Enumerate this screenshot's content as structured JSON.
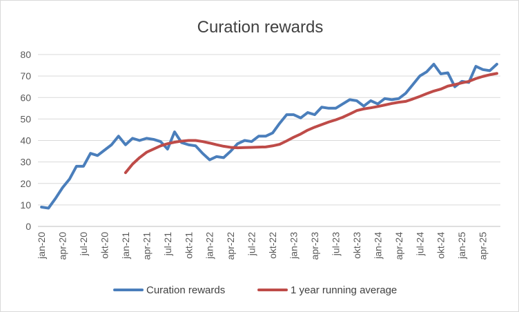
{
  "chart_data": {
    "type": "line",
    "title": "Curation rewards",
    "xlabel": "",
    "ylabel": "",
    "ylim": [
      0,
      80
    ],
    "yticks": [
      0,
      10,
      20,
      30,
      40,
      50,
      60,
      70,
      80
    ],
    "grid": true,
    "legend_position": "bottom",
    "x": [
      "jan-20",
      "feb-20",
      "mar-20",
      "apr-20",
      "may-20",
      "jun-20",
      "jul-20",
      "aug-20",
      "sep-20",
      "okt-20",
      "nov-20",
      "dec-20",
      "jan-21",
      "feb-21",
      "mar-21",
      "apr-21",
      "may-21",
      "jun-21",
      "jul-21",
      "aug-21",
      "sep-21",
      "okt-21",
      "nov-21",
      "dec-21",
      "jan-22",
      "feb-22",
      "mar-22",
      "apr-22",
      "may-22",
      "jun-22",
      "jul-22",
      "aug-22",
      "sep-22",
      "okt-22",
      "nov-22",
      "dec-22",
      "jan-23",
      "feb-23",
      "mar-23",
      "apr-23",
      "may-23",
      "jun-23",
      "jul-23",
      "aug-23",
      "sep-23",
      "okt-23",
      "nov-23",
      "dec-23",
      "jan-24",
      "feb-24",
      "mar-24",
      "apr-24",
      "may-24",
      "jun-24",
      "jul-24",
      "aug-24",
      "sep-24",
      "okt-24",
      "nov-24",
      "dec-24",
      "jan-25",
      "feb-25",
      "mar-25",
      "apr-25",
      "may-25",
      "jun-25"
    ],
    "x_tick_labels": [
      "jan-20",
      "apr-20",
      "jul-20",
      "okt-20",
      "jan-21",
      "apr-21",
      "jul-21",
      "okt-21",
      "jan-22",
      "apr-22",
      "jul-22",
      "okt-22",
      "jan-23",
      "apr-23",
      "jul-23",
      "okt-23",
      "jan-24",
      "apr-24",
      "jul-24",
      "okt-24",
      "jan-25",
      "apr-25"
    ],
    "series": [
      {
        "name": "Curation rewards",
        "color": "#4a7ebb",
        "values": [
          9,
          8.5,
          13,
          18,
          22,
          28,
          28,
          34,
          33,
          35.5,
          38,
          42,
          38,
          41,
          40,
          41,
          40.5,
          39.5,
          36,
          44,
          39,
          38,
          37.5,
          34,
          31,
          32.5,
          32,
          35,
          38.5,
          40,
          39.5,
          42,
          42,
          43.5,
          48,
          52,
          52,
          50.5,
          53,
          52,
          55.5,
          55,
          55,
          57,
          59,
          58.5,
          56,
          58.5,
          57,
          59.5,
          59,
          59.5,
          62,
          66,
          70,
          72,
          75.5,
          71,
          71.5,
          65,
          67.5,
          67,
          74.5,
          73,
          72.5,
          75.5
        ]
      },
      {
        "name": "1 year running average",
        "color": "#be4b48",
        "values": [
          null,
          null,
          null,
          null,
          null,
          null,
          null,
          null,
          null,
          null,
          null,
          null,
          25,
          29,
          32,
          34.5,
          36,
          37.5,
          38.5,
          39.2,
          39.7,
          40,
          40,
          39.5,
          38.8,
          38,
          37.3,
          36.8,
          36.6,
          36.7,
          36.8,
          36.9,
          37,
          37.5,
          38.2,
          39.8,
          41.5,
          43,
          44.8,
          46.2,
          47.4,
          48.6,
          49.6,
          50.8,
          52.3,
          53.9,
          54.7,
          55.2,
          55.8,
          56.5,
          57.2,
          57.8,
          58.2,
          59.3,
          60.5,
          61.8,
          63,
          63.9,
          65.3,
          66,
          66.8,
          67.5,
          68.8,
          69.8,
          70.6,
          71.2
        ]
      }
    ]
  }
}
